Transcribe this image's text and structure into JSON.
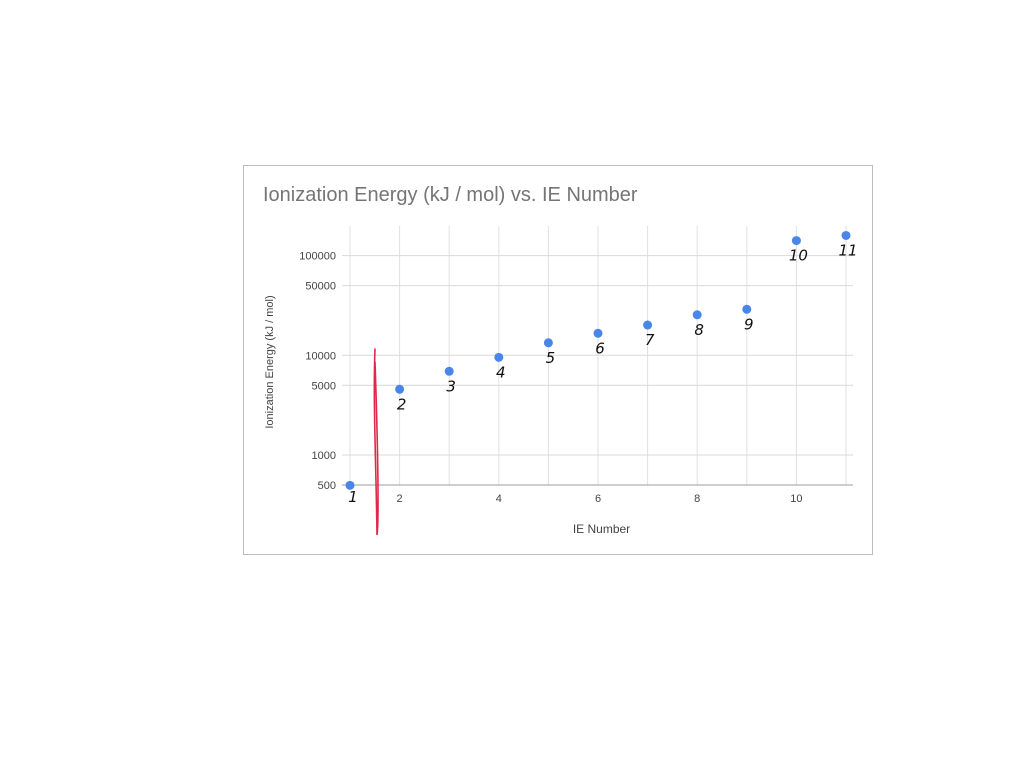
{
  "chart_data": {
    "type": "scatter",
    "title": "Ionization Energy (kJ / mol) vs. IE Number",
    "xlabel": "IE Number",
    "ylabel": "Ionization Energy (kJ / mol)",
    "x": [
      1,
      2,
      3,
      4,
      5,
      6,
      7,
      8,
      9,
      10,
      11
    ],
    "y": [
      496,
      4562,
      6910,
      9543,
      13354,
      16613,
      20117,
      25496,
      28932,
      141362,
      159076
    ],
    "xlim": [
      1,
      11
    ],
    "ylim": [
      500,
      195000
    ],
    "yscale": "log",
    "xticks": [
      2,
      4,
      6,
      8,
      10
    ],
    "xtick_labels": [
      "2",
      "4",
      "6",
      "8",
      "10"
    ],
    "yticks": [
      500,
      1000,
      5000,
      10000,
      50000,
      100000
    ],
    "ytick_labels": [
      "500",
      "1000",
      "5000",
      "10000",
      "50000",
      "100000"
    ],
    "grid": true,
    "point_color": "#4a86e8",
    "annotations": {
      "handwritten_labels": [
        "1",
        "2",
        "3",
        "4",
        "5",
        "6",
        "7",
        "8",
        "9",
        "10",
        "11"
      ],
      "ink_color": "#111111",
      "divider_color": "#e0284a"
    }
  }
}
